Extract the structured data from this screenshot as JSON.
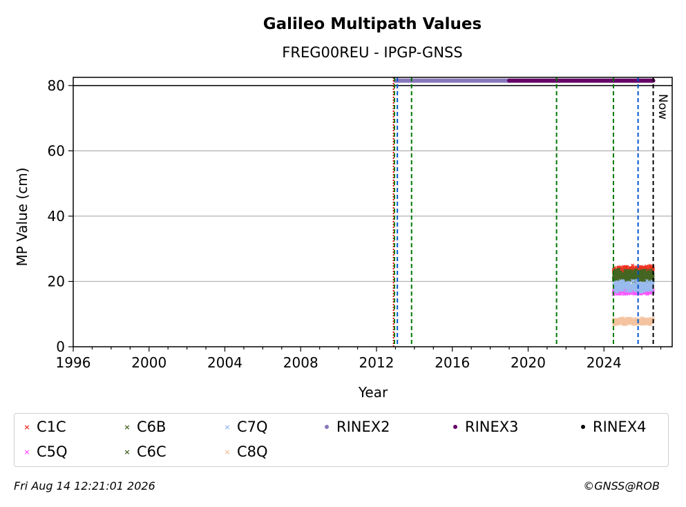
{
  "chart_data": {
    "type": "scatter",
    "title": "Galileo Multipath Values",
    "subtitle": "FREG00REU - IPGP-GNSS",
    "xlabel": "Year",
    "ylabel": "MP Value (cm)",
    "xlim": [
      1996,
      2027.6
    ],
    "ylim": [
      0,
      82.5
    ],
    "x_ticks": [
      1996,
      2000,
      2004,
      2008,
      2012,
      2016,
      2020,
      2024
    ],
    "y_ticks": [
      0,
      20,
      40,
      60,
      80
    ],
    "grid": "horizontal",
    "now_label": "Now",
    "reference_line_y": 80,
    "series": [
      {
        "name": "C1C",
        "marker": "x",
        "color": "#ee3322",
        "x_range": [
          2024.5,
          2026.6
        ],
        "y_center": 23.5,
        "y_spread": 1.5
      },
      {
        "name": "C5Q",
        "marker": "x",
        "color": "#ff55ff",
        "x_range": [
          2024.5,
          2026.6
        ],
        "y_center": 17.0,
        "y_spread": 1.0
      },
      {
        "name": "C6B",
        "marker": "x",
        "color": "#446622",
        "x_range": [
          2024.5,
          2026.6
        ],
        "y_center": 22.0,
        "y_spread": 1.8
      },
      {
        "name": "C6C",
        "marker": "x",
        "color": "#446622",
        "x_range": [
          2024.5,
          2026.6
        ],
        "y_center": 21.0,
        "y_spread": 1.5
      },
      {
        "name": "C7Q",
        "marker": "x",
        "color": "#99bbee",
        "x_range": [
          2024.5,
          2026.6
        ],
        "y_center": 18.5,
        "y_spread": 2.0
      },
      {
        "name": "C8Q",
        "marker": "x",
        "color": "#f4c3a0",
        "x_range": [
          2024.5,
          2026.6
        ],
        "y_center": 7.8,
        "y_spread": 1.2
      },
      {
        "name": "RINEX2",
        "marker": "o",
        "color": "#8877bb",
        "x_range": [
          2013.0,
          2019.0
        ],
        "y": 81.5
      },
      {
        "name": "RINEX3",
        "marker": "o",
        "color": "#660066",
        "x_range": [
          2019.0,
          2026.6
        ],
        "y": 81.5
      },
      {
        "name": "RINEX4",
        "marker": "o",
        "color": "#000000",
        "x_range": [],
        "y": 81.5
      }
    ],
    "vertical_lines": [
      {
        "x": 2012.9,
        "color": "#dd0000",
        "style": "dotted"
      },
      {
        "x": 2012.95,
        "color": "#007700",
        "style": "dashed"
      },
      {
        "x": 2013.1,
        "color": "#0055cc",
        "style": "dashed"
      },
      {
        "x": 2013.85,
        "color": "#007700",
        "style": "dashed"
      },
      {
        "x": 2021.5,
        "color": "#007700",
        "style": "dashed"
      },
      {
        "x": 2024.5,
        "color": "#007700",
        "style": "dashed"
      },
      {
        "x": 2025.8,
        "color": "#0055cc",
        "style": "dashed"
      },
      {
        "x": 2026.6,
        "color": "#000000",
        "style": "dashed"
      }
    ]
  },
  "legend": [
    {
      "label": "C1C",
      "marker": "x",
      "color": "#ee3322"
    },
    {
      "label": "C6B",
      "marker": "x",
      "color": "#446622"
    },
    {
      "label": "C7Q",
      "marker": "x",
      "color": "#99bbee"
    },
    {
      "label": "RINEX2",
      "marker": "o",
      "color": "#8877bb"
    },
    {
      "label": "RINEX3",
      "marker": "o",
      "color": "#660066"
    },
    {
      "label": "RINEX4",
      "marker": "o",
      "color": "#000000"
    },
    {
      "label": "C5Q",
      "marker": "x",
      "color": "#ff55ff"
    },
    {
      "label": "C6C",
      "marker": "x",
      "color": "#446622"
    },
    {
      "label": "C8Q",
      "marker": "x",
      "color": "#f4c3a0"
    }
  ],
  "footer": {
    "timestamp": "Fri Aug 14 12:21:01 2026",
    "credit": "©GNSS@ROB"
  }
}
